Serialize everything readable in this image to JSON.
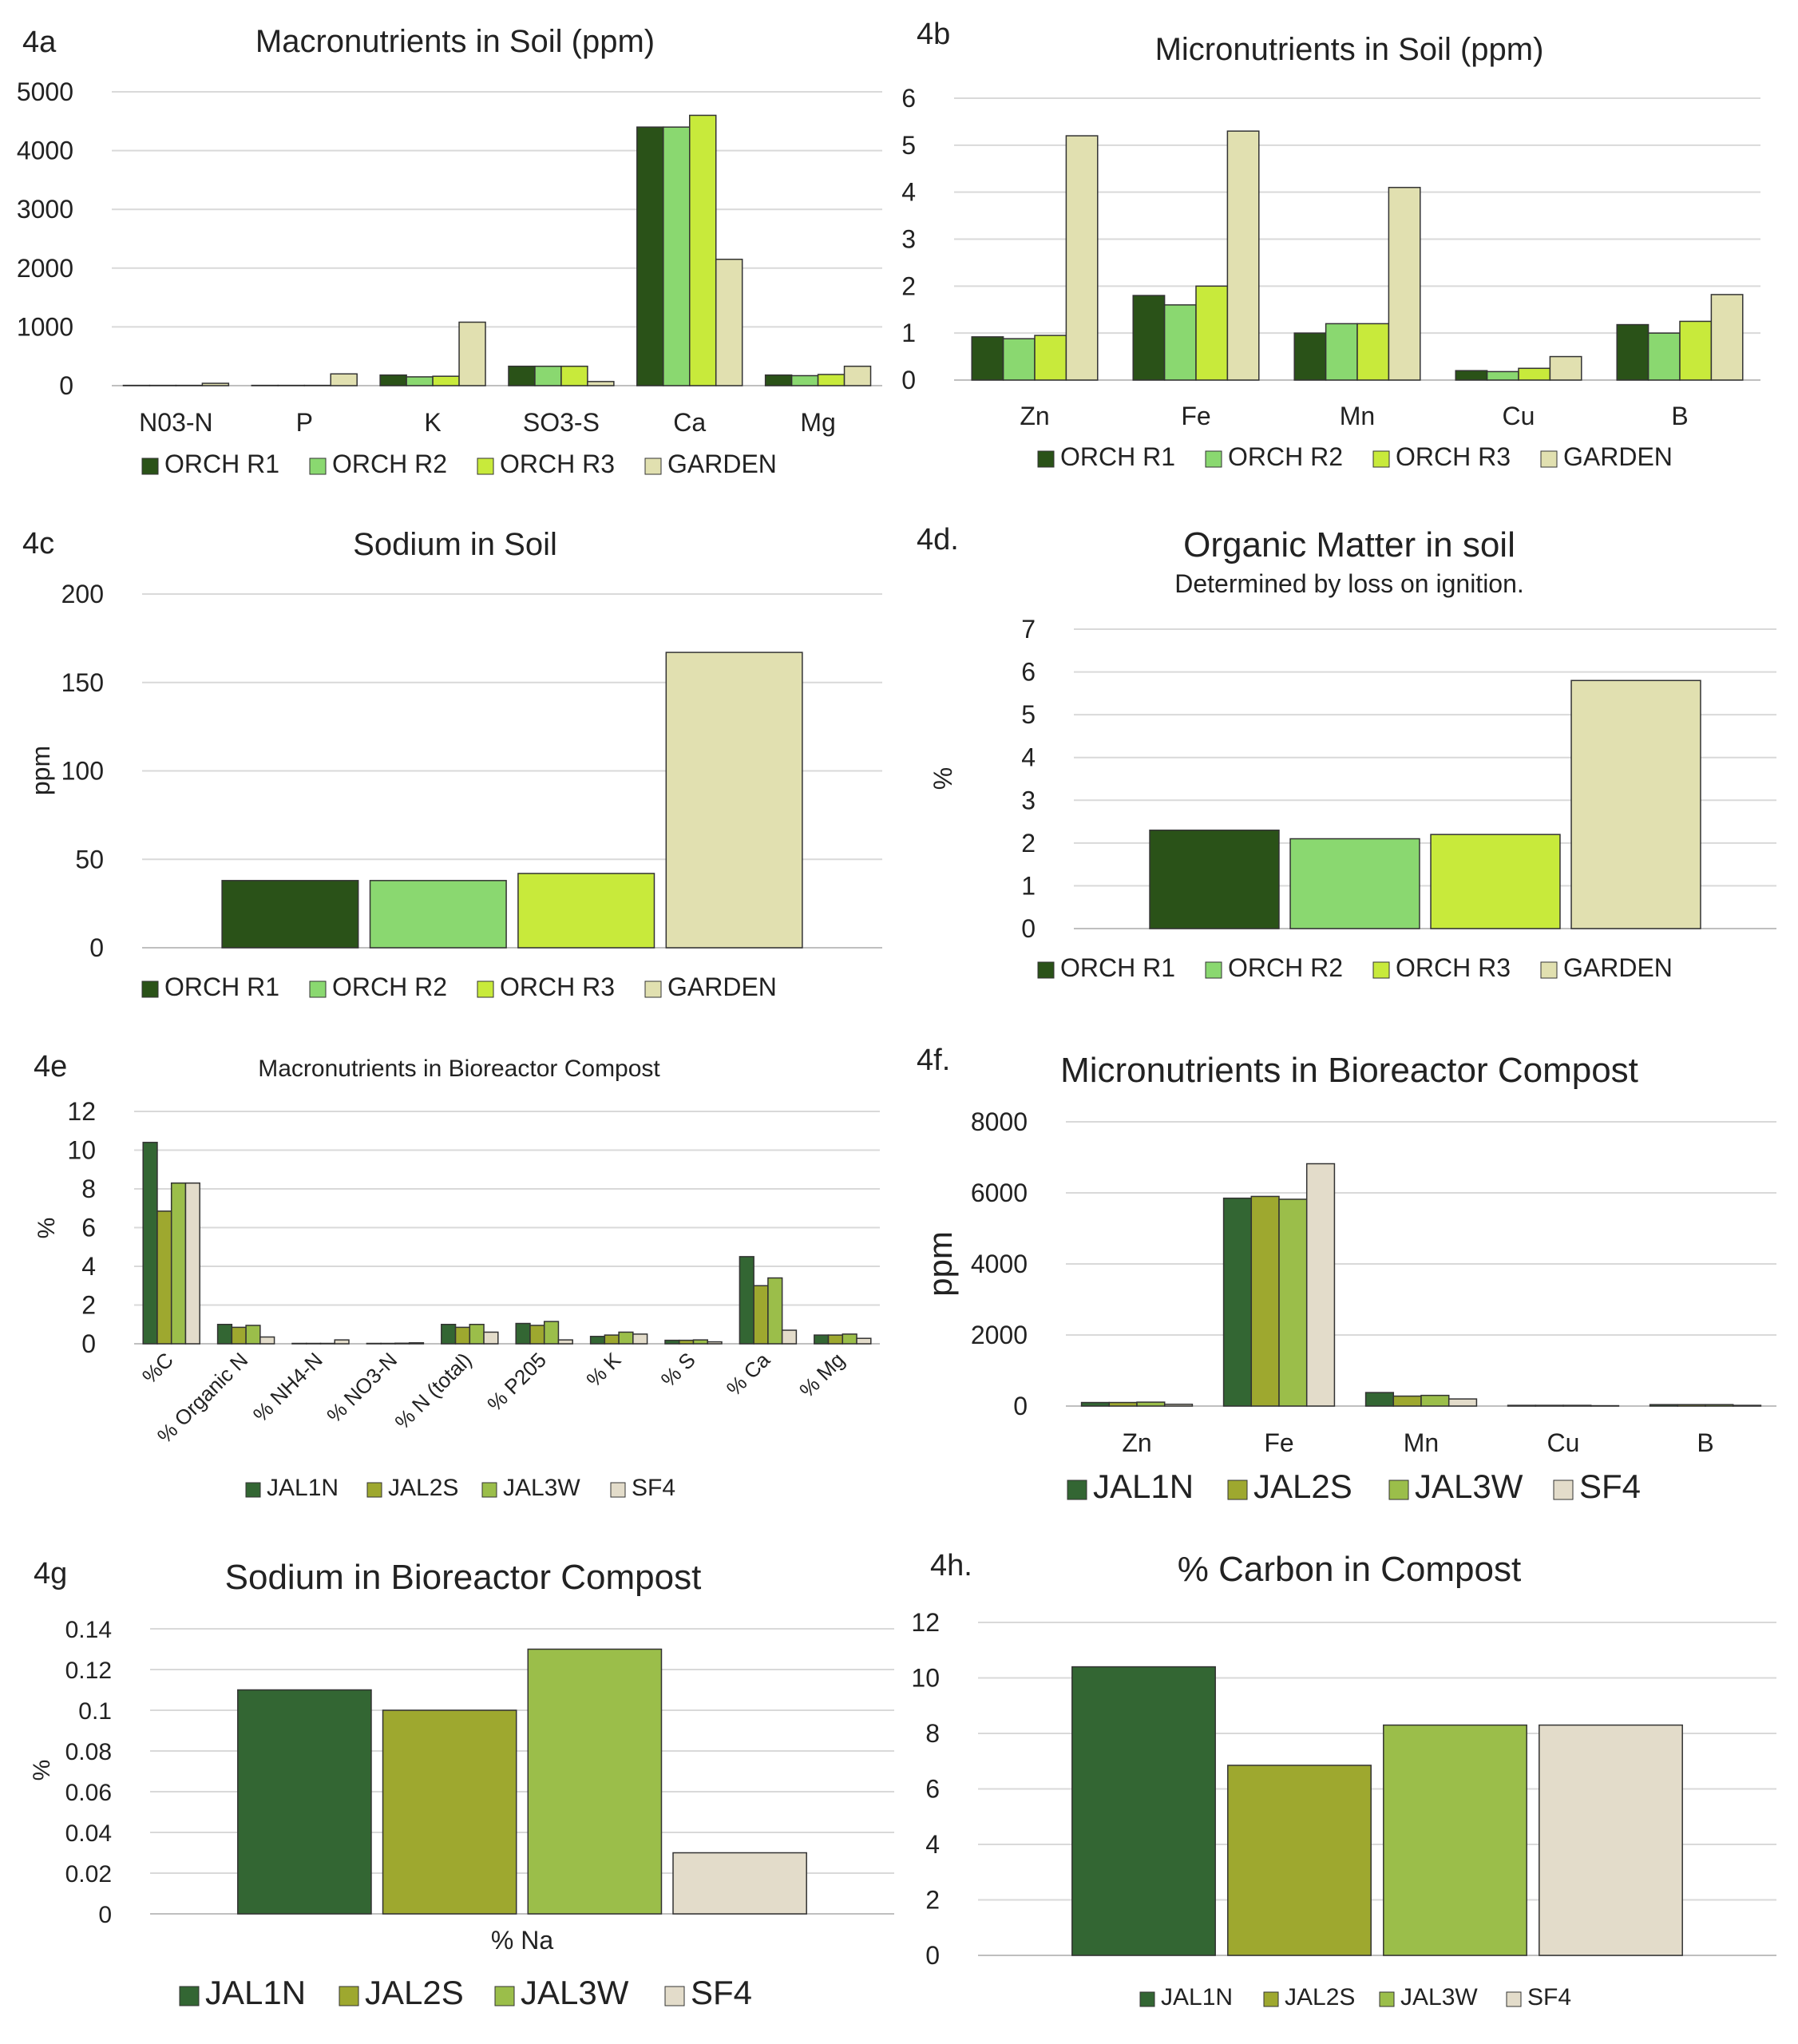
{
  "colors": {
    "soil": [
      "#2a5218",
      "#8ad870",
      "#c8ea3b",
      "#e1e0b0"
    ],
    "compost": [
      "#336633",
      "#9ea82f",
      "#9bbe4a",
      "#e3dcca"
    ],
    "grid": "#d9d9d9",
    "axis": "#bfbfbf",
    "bar_stroke": "#333333"
  },
  "chart_data": [
    {
      "id": "4a",
      "panel_label": "4a",
      "type": "bar",
      "title": "Macronutrients in Soil (ppm)",
      "subtitle": "",
      "ylabel": "",
      "xlabel": "",
      "ylim": [
        0,
        5000
      ],
      "yticks": [
        0,
        1000,
        2000,
        3000,
        4000,
        5000
      ],
      "categories": [
        "N03-N",
        "P",
        "K",
        "SO3-S",
        "Ca",
        "Mg"
      ],
      "series": [
        {
          "name": "ORCH R1",
          "values": [
            5,
            5,
            180,
            330,
            4400,
            180
          ]
        },
        {
          "name": "ORCH R2",
          "values": [
            5,
            5,
            150,
            330,
            4400,
            170
          ]
        },
        {
          "name": "ORCH R3",
          "values": [
            5,
            5,
            160,
            330,
            4600,
            190
          ]
        },
        {
          "name": "GARDEN",
          "values": [
            40,
            200,
            1080,
            70,
            2150,
            330
          ]
        }
      ],
      "grid": true,
      "legend": "bottom",
      "palette": "soil"
    },
    {
      "id": "4b",
      "panel_label": "4b",
      "type": "bar",
      "title": "Micronutrients in Soil (ppm)",
      "subtitle": "",
      "ylabel": "",
      "xlabel": "",
      "ylim": [
        0,
        6
      ],
      "yticks": [
        0,
        1,
        2,
        3,
        4,
        5,
        6
      ],
      "categories": [
        "Zn",
        "Fe",
        "Mn",
        "Cu",
        "B"
      ],
      "series": [
        {
          "name": "ORCH R1",
          "values": [
            0.92,
            1.8,
            1.0,
            0.2,
            1.18
          ]
        },
        {
          "name": "ORCH R2",
          "values": [
            0.88,
            1.6,
            1.2,
            0.18,
            1.0
          ]
        },
        {
          "name": "ORCH R3",
          "values": [
            0.95,
            2.0,
            1.2,
            0.25,
            1.25
          ]
        },
        {
          "name": "GARDEN",
          "values": [
            5.2,
            5.3,
            4.1,
            0.5,
            1.82
          ]
        }
      ],
      "grid": true,
      "legend": "bottom",
      "palette": "soil"
    },
    {
      "id": "4c",
      "panel_label": "4c",
      "type": "bar",
      "title": "Sodium in Soil",
      "subtitle": "",
      "ylabel": "ppm",
      "xlabel": "",
      "ylim": [
        0,
        200
      ],
      "yticks": [
        0,
        50,
        100,
        150,
        200
      ],
      "categories": [
        ""
      ],
      "series": [
        {
          "name": "ORCH R1",
          "values": [
            38
          ]
        },
        {
          "name": "ORCH R2",
          "values": [
            38
          ]
        },
        {
          "name": "ORCH R3",
          "values": [
            42
          ]
        },
        {
          "name": "GARDEN",
          "values": [
            167
          ]
        }
      ],
      "grid": true,
      "legend": "bottom",
      "palette": "soil"
    },
    {
      "id": "4d",
      "panel_label": "4d.",
      "type": "bar",
      "title": "Organic Matter in soil",
      "subtitle": "Determined by loss on ignition.",
      "ylabel": "%",
      "xlabel": "",
      "ylim": [
        0,
        7
      ],
      "yticks": [
        0,
        1,
        2,
        3,
        4,
        5,
        6,
        7
      ],
      "categories": [
        ""
      ],
      "series": [
        {
          "name": "ORCH R1",
          "values": [
            2.3
          ]
        },
        {
          "name": "ORCH R2",
          "values": [
            2.1
          ]
        },
        {
          "name": "ORCH R3",
          "values": [
            2.2
          ]
        },
        {
          "name": "GARDEN",
          "values": [
            5.8
          ]
        }
      ],
      "grid": true,
      "legend": "bottom",
      "palette": "soil"
    },
    {
      "id": "4e",
      "panel_label": "4e",
      "type": "bar",
      "title": "Macronutrients in Bioreactor Compost",
      "subtitle": "",
      "ylabel": "%",
      "xlabel": "",
      "ylim": [
        0,
        12
      ],
      "yticks": [
        0,
        2,
        4,
        6,
        8,
        10,
        12
      ],
      "categories": [
        "%C",
        "% Organic N",
        "% NH4-N",
        "% NO3-N",
        "% N (total)",
        "% P205",
        "% K",
        "% S",
        "% Ca",
        "% Mg"
      ],
      "series": [
        {
          "name": "JAL1N",
          "values": [
            10.4,
            1.0,
            0.02,
            0.02,
            1.0,
            1.05,
            0.38,
            0.18,
            4.5,
            0.45
          ]
        },
        {
          "name": "JAL2S",
          "values": [
            6.85,
            0.85,
            0.02,
            0.02,
            0.85,
            0.95,
            0.45,
            0.18,
            3.0,
            0.45
          ]
        },
        {
          "name": "JAL3W",
          "values": [
            8.3,
            0.95,
            0.02,
            0.03,
            1.0,
            1.15,
            0.6,
            0.2,
            3.4,
            0.5
          ]
        },
        {
          "name": "SF4",
          "values": [
            8.3,
            0.35,
            0.2,
            0.05,
            0.6,
            0.2,
            0.5,
            0.1,
            0.7,
            0.28
          ]
        }
      ],
      "grid": true,
      "legend": "bottom",
      "palette": "compost"
    },
    {
      "id": "4f",
      "panel_label": "4f.",
      "type": "bar",
      "title": "Micronutrients in Bioreactor Compost",
      "subtitle": "",
      "ylabel": "ppm",
      "xlabel": "",
      "ylim": [
        0,
        8000
      ],
      "yticks": [
        0,
        2000,
        4000,
        6000,
        8000
      ],
      "categories": [
        "Zn",
        "Fe",
        "Mn",
        "Cu",
        "B"
      ],
      "series": [
        {
          "name": "JAL1N",
          "values": [
            100,
            5850,
            380,
            20,
            40
          ]
        },
        {
          "name": "JAL2S",
          "values": [
            100,
            5900,
            280,
            20,
            40
          ]
        },
        {
          "name": "JAL3W",
          "values": [
            110,
            5820,
            300,
            20,
            40
          ]
        },
        {
          "name": "SF4",
          "values": [
            50,
            6820,
            200,
            10,
            20
          ]
        }
      ],
      "grid": true,
      "legend": "bottom",
      "palette": "compost"
    },
    {
      "id": "4g",
      "panel_label": "4g",
      "type": "bar",
      "title": "Sodium in Bioreactor Compost",
      "subtitle": "",
      "ylabel": "%",
      "xlabel": "",
      "ylim": [
        0,
        0.14
      ],
      "yticks": [
        0,
        0.02,
        0.04,
        0.06,
        0.08,
        0.1,
        0.12,
        0.14
      ],
      "categories": [
        "% Na"
      ],
      "series": [
        {
          "name": "JAL1N",
          "values": [
            0.11
          ]
        },
        {
          "name": "JAL2S",
          "values": [
            0.1
          ]
        },
        {
          "name": "JAL3W",
          "values": [
            0.13
          ]
        },
        {
          "name": "SF4",
          "values": [
            0.03
          ]
        }
      ],
      "grid": true,
      "legend": "bottom",
      "palette": "compost"
    },
    {
      "id": "4h",
      "panel_label": "4h.",
      "type": "bar",
      "title": "% Carbon in Compost",
      "subtitle": "",
      "ylabel": "",
      "xlabel": "",
      "ylim": [
        0,
        12
      ],
      "yticks": [
        0,
        2,
        4,
        6,
        8,
        10,
        12
      ],
      "categories": [
        ""
      ],
      "series": [
        {
          "name": "JAL1N",
          "values": [
            10.4
          ]
        },
        {
          "name": "JAL2S",
          "values": [
            6.85
          ]
        },
        {
          "name": "JAL3W",
          "values": [
            8.3
          ]
        },
        {
          "name": "SF4",
          "values": [
            8.3
          ]
        }
      ],
      "grid": true,
      "legend": "bottom",
      "palette": "compost"
    }
  ]
}
